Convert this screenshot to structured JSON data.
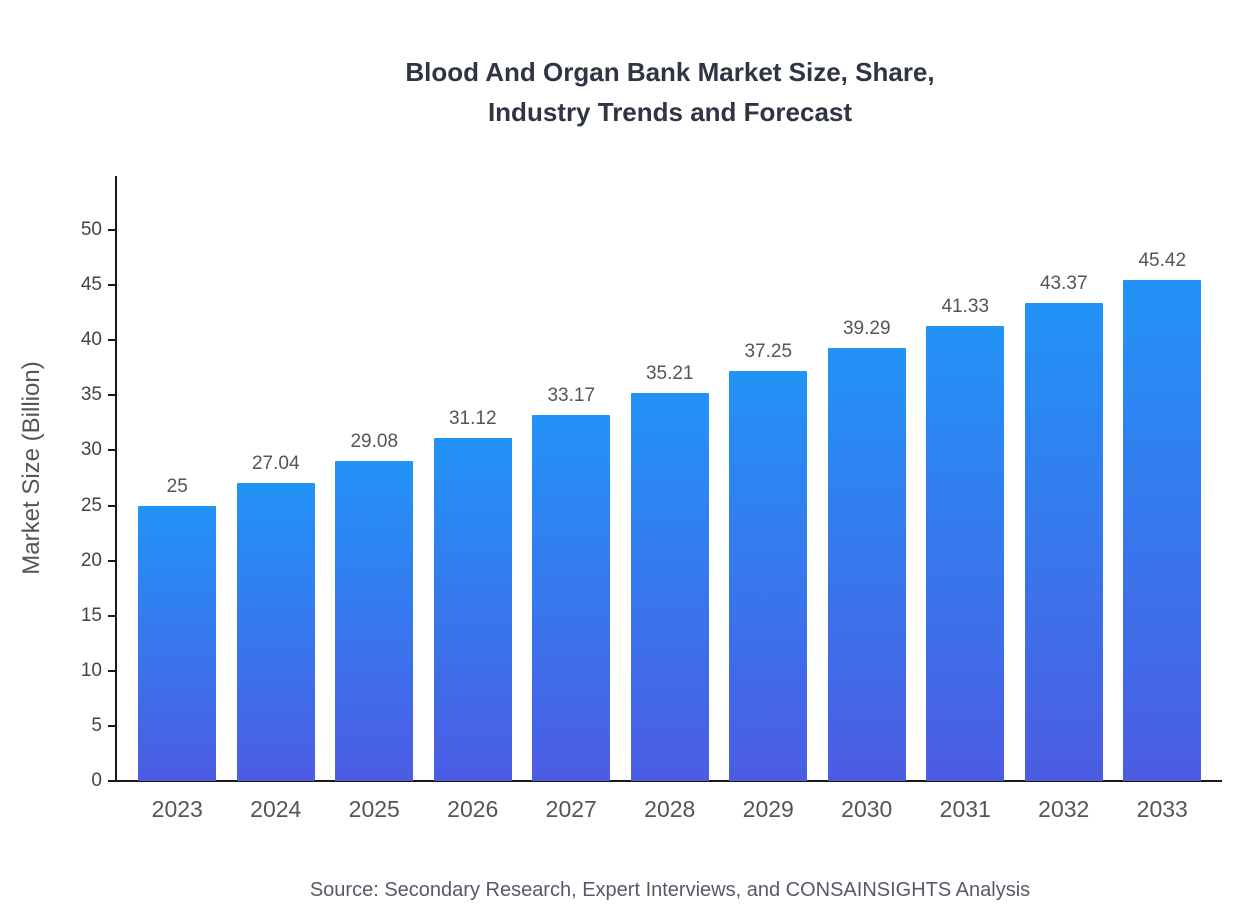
{
  "title": {
    "line1": "Blood And Organ Bank Market Size, Share,",
    "line2": "Industry Trends and Forecast"
  },
  "source": "Source: Secondary Research, Expert Interviews, and CONSAINSIGHTS Analysis",
  "chart_data": {
    "type": "bar",
    "title": "Blood And Organ Bank Market Size, Share, Industry Trends and Forecast",
    "xlabel": "",
    "ylabel": "Market Size (Billion)",
    "categories": [
      "2023",
      "2024",
      "2025",
      "2026",
      "2027",
      "2028",
      "2029",
      "2030",
      "2031",
      "2032",
      "2033"
    ],
    "values": [
      25,
      27.04,
      29.08,
      31.12,
      33.17,
      35.21,
      37.25,
      39.29,
      41.33,
      43.37,
      45.42
    ],
    "value_labels": [
      "25",
      "27.04",
      "29.08",
      "31.12",
      "33.17",
      "35.21",
      "37.25",
      "39.29",
      "41.33",
      "43.37",
      "45.42"
    ],
    "ylim": [
      0,
      55
    ],
    "yticks": [
      0,
      5,
      10,
      15,
      20,
      25,
      30,
      35,
      40,
      45,
      50
    ],
    "grid": false,
    "legend": false,
    "bar_gradient_top": "#2293f7",
    "bar_gradient_bottom": "#4c5ce2",
    "axis_color": "#1a1a1a",
    "label_color": "#555555"
  }
}
